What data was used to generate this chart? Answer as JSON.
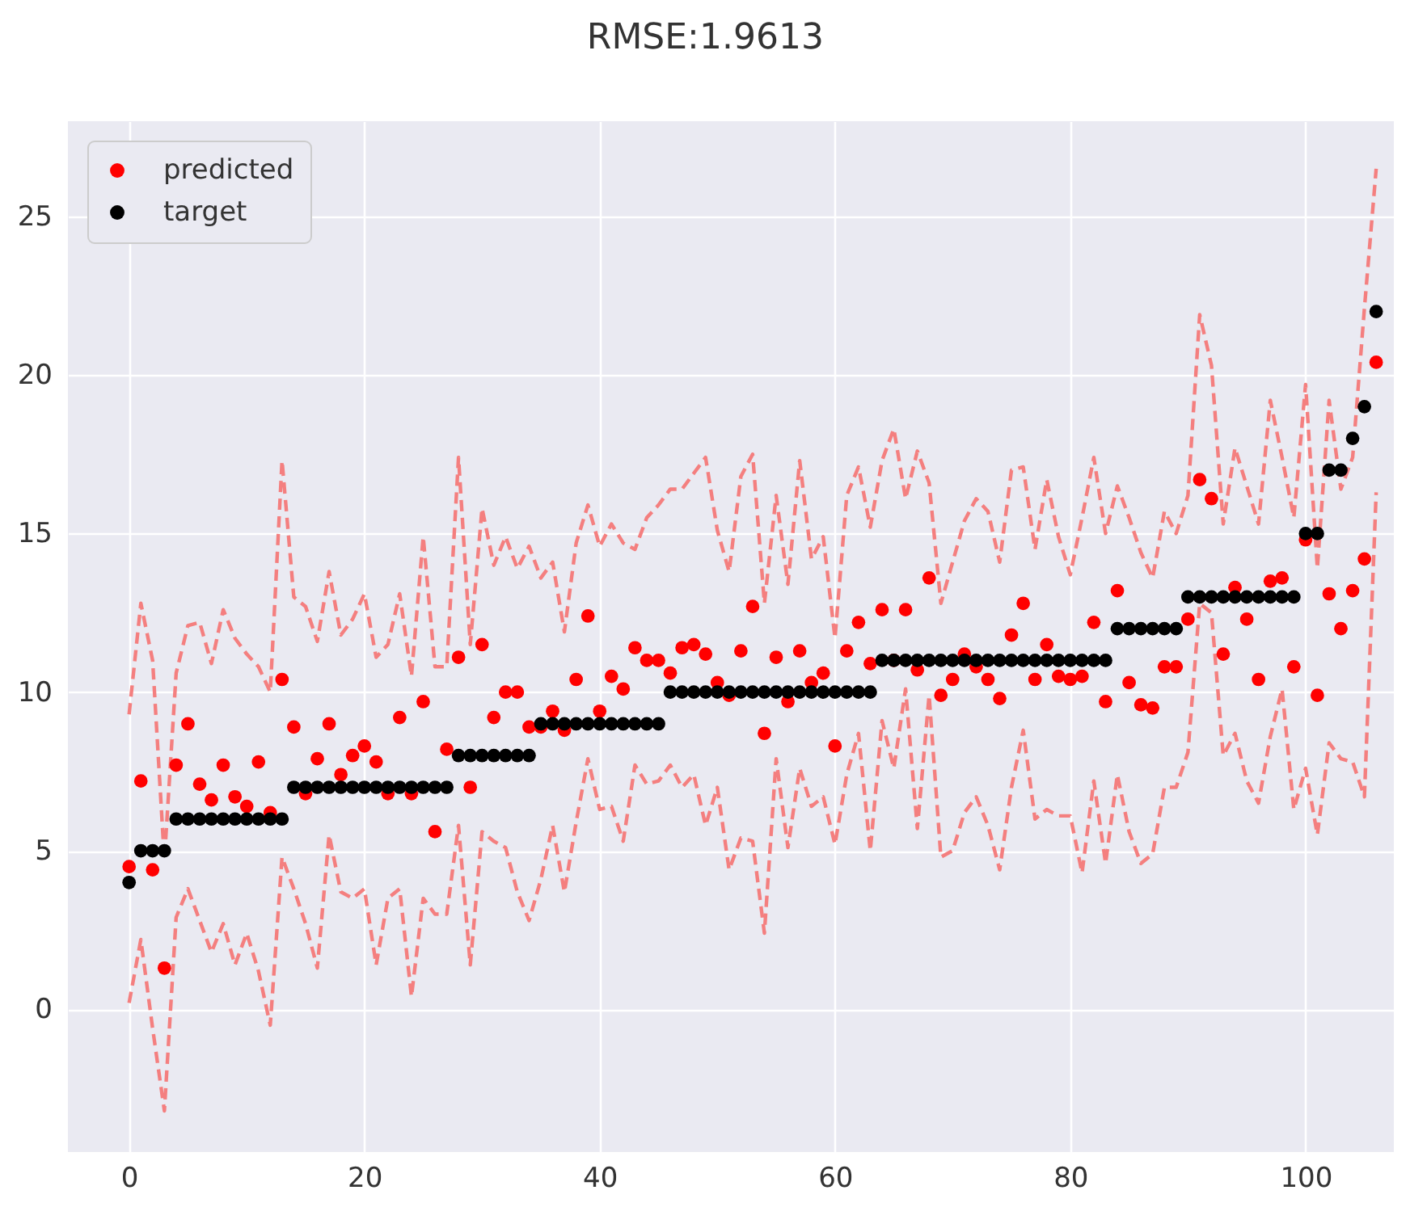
{
  "chart_data": {
    "type": "scatter",
    "title": "RMSE:1.9613",
    "x": [
      0,
      1,
      2,
      3,
      4,
      5,
      6,
      7,
      8,
      9,
      10,
      11,
      12,
      13,
      14,
      15,
      16,
      17,
      18,
      19,
      20,
      21,
      22,
      23,
      24,
      25,
      26,
      27,
      28,
      29,
      30,
      31,
      32,
      33,
      34,
      35,
      36,
      37,
      38,
      39,
      40,
      41,
      42,
      43,
      44,
      45,
      46,
      47,
      48,
      49,
      50,
      51,
      52,
      53,
      54,
      55,
      56,
      57,
      58,
      59,
      60,
      61,
      62,
      63,
      64,
      65,
      66,
      67,
      68,
      69,
      70,
      71,
      72,
      73,
      74,
      75,
      76,
      77,
      78,
      79,
      80,
      81,
      82,
      83,
      84,
      85,
      86,
      87,
      88,
      89,
      90,
      91,
      92,
      93,
      94,
      95,
      96,
      97,
      98,
      99,
      100,
      101,
      102,
      103,
      104,
      105,
      106
    ],
    "xlim": [
      -5.2,
      107.5
    ],
    "xticks": [
      0,
      20,
      40,
      60,
      80,
      100
    ],
    "ylim": [
      -4.5,
      28
    ],
    "yticks": [
      0,
      5,
      10,
      15,
      20,
      25
    ],
    "grid": true,
    "legend": "top left",
    "series": [
      {
        "type": "line",
        "color": "#f47f7f",
        "line_style": "dashed",
        "values": [
          9.3,
          12.8,
          11.0,
          4.7,
          10.6,
          12.1,
          12.2,
          10.9,
          12.6,
          11.7,
          11.2,
          10.8,
          10.0,
          17.3,
          13.0,
          12.7,
          11.6,
          13.8,
          11.8,
          12.3,
          13.1,
          11.1,
          11.5,
          13.1,
          10.5,
          14.9,
          10.8,
          10.8,
          17.4,
          11.5,
          15.8,
          14.0,
          14.9,
          13.9,
          14.6,
          13.6,
          14.1,
          11.9,
          14.7,
          15.9,
          14.6,
          15.3,
          14.7,
          14.5,
          15.5,
          15.9,
          16.4,
          16.4,
          16.9,
          17.4,
          15.1,
          13.8,
          16.8,
          17.5,
          12.8,
          16.2,
          13.4,
          17.3,
          14.2,
          14.9,
          11.7,
          16.2,
          17.1,
          15.2,
          17.3,
          18.3,
          16.1,
          17.6,
          16.6,
          12.8,
          14.1,
          15.4,
          16.1,
          15.7,
          14.1,
          17.0,
          17.1,
          14.5,
          16.7,
          14.9,
          13.7,
          15.5,
          17.4,
          15.0,
          16.5,
          15.5,
          14.4,
          13.6,
          15.7,
          15.0,
          16.2,
          21.9,
          20.3,
          15.3,
          17.7,
          16.5,
          15.3,
          19.2,
          17.4,
          15.5,
          19.7,
          13.9,
          19.2,
          16.4,
          17.4,
          22.1,
          26.5
        ]
      },
      {
        "type": "line",
        "color": "#f47f7f",
        "line_style": "dashed",
        "values": [
          0.2,
          2.2,
          -0.6,
          -3.2,
          2.9,
          3.8,
          2.8,
          1.8,
          2.7,
          1.4,
          2.4,
          1.2,
          -0.5,
          4.8,
          3.8,
          2.7,
          1.3,
          5.5,
          3.7,
          3.5,
          3.8,
          1.4,
          3.5,
          3.8,
          0.4,
          3.5,
          3.0,
          3.0,
          5.8,
          1.4,
          5.6,
          5.3,
          5.1,
          3.7,
          2.8,
          4.1,
          5.8,
          3.7,
          5.9,
          7.9,
          6.3,
          6.4,
          5.3,
          7.7,
          7.1,
          7.2,
          7.7,
          7.0,
          7.4,
          5.8,
          7.0,
          4.4,
          5.4,
          5.3,
          2.4,
          7.9,
          5.1,
          7.6,
          6.4,
          6.7,
          5.2,
          7.4,
          8.7,
          5.0,
          9.1,
          7.6,
          10.1,
          5.7,
          9.9,
          4.8,
          5.0,
          6.2,
          6.7,
          5.8,
          4.4,
          7.0,
          8.8,
          6.0,
          6.3,
          6.1,
          6.1,
          4.3,
          7.2,
          4.6,
          7.4,
          5.6,
          4.6,
          4.9,
          7.0,
          7.0,
          8.1,
          12.8,
          12.5,
          8.0,
          8.7,
          7.2,
          6.5,
          8.6,
          10.1,
          6.3,
          7.6,
          5.5,
          8.4,
          7.9,
          7.8,
          6.7,
          16.3
        ]
      },
      {
        "name": "predicted",
        "color": "#ff0000",
        "marker": "circle",
        "values": [
          4.5,
          7.2,
          4.4,
          1.3,
          7.7,
          9.0,
          7.1,
          6.6,
          7.7,
          6.7,
          6.4,
          7.8,
          6.2,
          10.4,
          8.9,
          6.8,
          7.9,
          9.0,
          7.4,
          8.0,
          8.3,
          7.8,
          6.8,
          9.2,
          6.8,
          9.7,
          5.6,
          8.2,
          11.1,
          7.0,
          11.5,
          9.2,
          10.0,
          10.0,
          8.9,
          8.9,
          9.4,
          8.8,
          10.4,
          12.4,
          9.4,
          10.5,
          10.1,
          11.4,
          11.0,
          11.0,
          10.6,
          11.4,
          11.5,
          11.2,
          10.3,
          9.9,
          11.3,
          12.7,
          8.7,
          11.1,
          9.7,
          11.3,
          10.3,
          10.6,
          8.3,
          11.3,
          12.2,
          10.9,
          12.6,
          11.0,
          12.6,
          10.7,
          13.6,
          9.9,
          10.4,
          11.2,
          10.8,
          10.4,
          9.8,
          11.8,
          12.8,
          10.4,
          11.5,
          10.5,
          10.4,
          10.5,
          12.2,
          9.7,
          13.2,
          10.3,
          9.6,
          9.5,
          10.8,
          10.8,
          12.3,
          16.7,
          16.1,
          11.2,
          13.3,
          12.3,
          10.4,
          13.5,
          13.6,
          10.8,
          14.8,
          9.9,
          13.1,
          12.0,
          13.2,
          14.2,
          20.4
        ]
      },
      {
        "name": "target",
        "color": "#000000",
        "marker": "circle",
        "values": [
          4,
          5,
          5,
          5,
          6,
          6,
          6,
          6,
          6,
          6,
          6,
          6,
          6,
          6,
          7,
          7,
          7,
          7,
          7,
          7,
          7,
          7,
          7,
          7,
          7,
          7,
          7,
          7,
          8,
          8,
          8,
          8,
          8,
          8,
          8,
          9,
          9,
          9,
          9,
          9,
          9,
          9,
          9,
          9,
          9,
          9,
          10,
          10,
          10,
          10,
          10,
          10,
          10,
          10,
          10,
          10,
          10,
          10,
          10,
          10,
          10,
          10,
          10,
          10,
          11,
          11,
          11,
          11,
          11,
          11,
          11,
          11,
          11,
          11,
          11,
          11,
          11,
          11,
          11,
          11,
          11,
          11,
          11,
          11,
          12,
          12,
          12,
          12,
          12,
          12,
          13,
          13,
          13,
          13,
          13,
          13,
          13,
          13,
          13,
          13,
          15,
          15,
          17,
          17,
          18,
          19,
          22
        ]
      }
    ]
  }
}
